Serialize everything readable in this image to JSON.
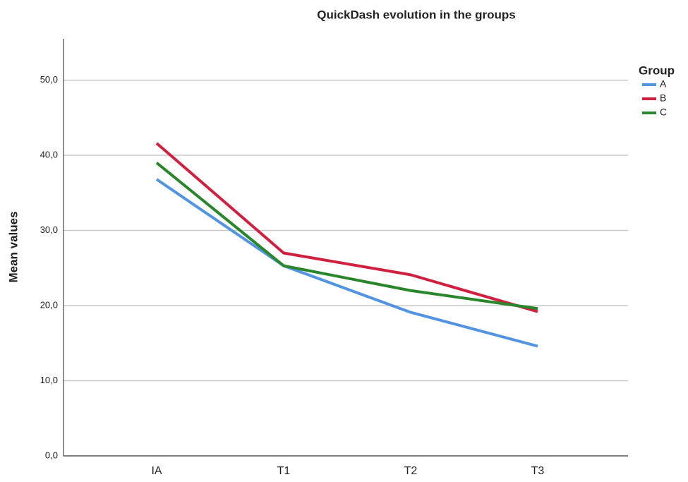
{
  "chart_data": {
    "type": "line",
    "title": "QuickDash evolution in the groups",
    "y_label": "Mean values",
    "legend_title": "Group",
    "legend_position": "right",
    "categories": [
      "IA",
      "T1",
      "T2",
      "T3"
    ],
    "series": [
      {
        "name": "A",
        "color": "#5294e2",
        "values": [
          36.8,
          25.3,
          19.1,
          14.6
        ]
      },
      {
        "name": "B",
        "color": "#d11f3f",
        "values": [
          41.6,
          27.0,
          24.1,
          19.2
        ]
      },
      {
        "name": "C",
        "color": "#2a862a",
        "values": [
          39.0,
          25.3,
          22.0,
          19.6
        ]
      }
    ],
    "ylim": [
      0,
      55.5
    ],
    "yticks": [
      {
        "value": 0,
        "label": "0,0"
      },
      {
        "value": 10,
        "label": "10,0"
      },
      {
        "value": 20,
        "label": "20,0"
      },
      {
        "value": 30,
        "label": "30,0"
      },
      {
        "value": 40,
        "label": "40,0"
      },
      {
        "value": 50,
        "label": "50,0"
      }
    ],
    "grid": true
  }
}
